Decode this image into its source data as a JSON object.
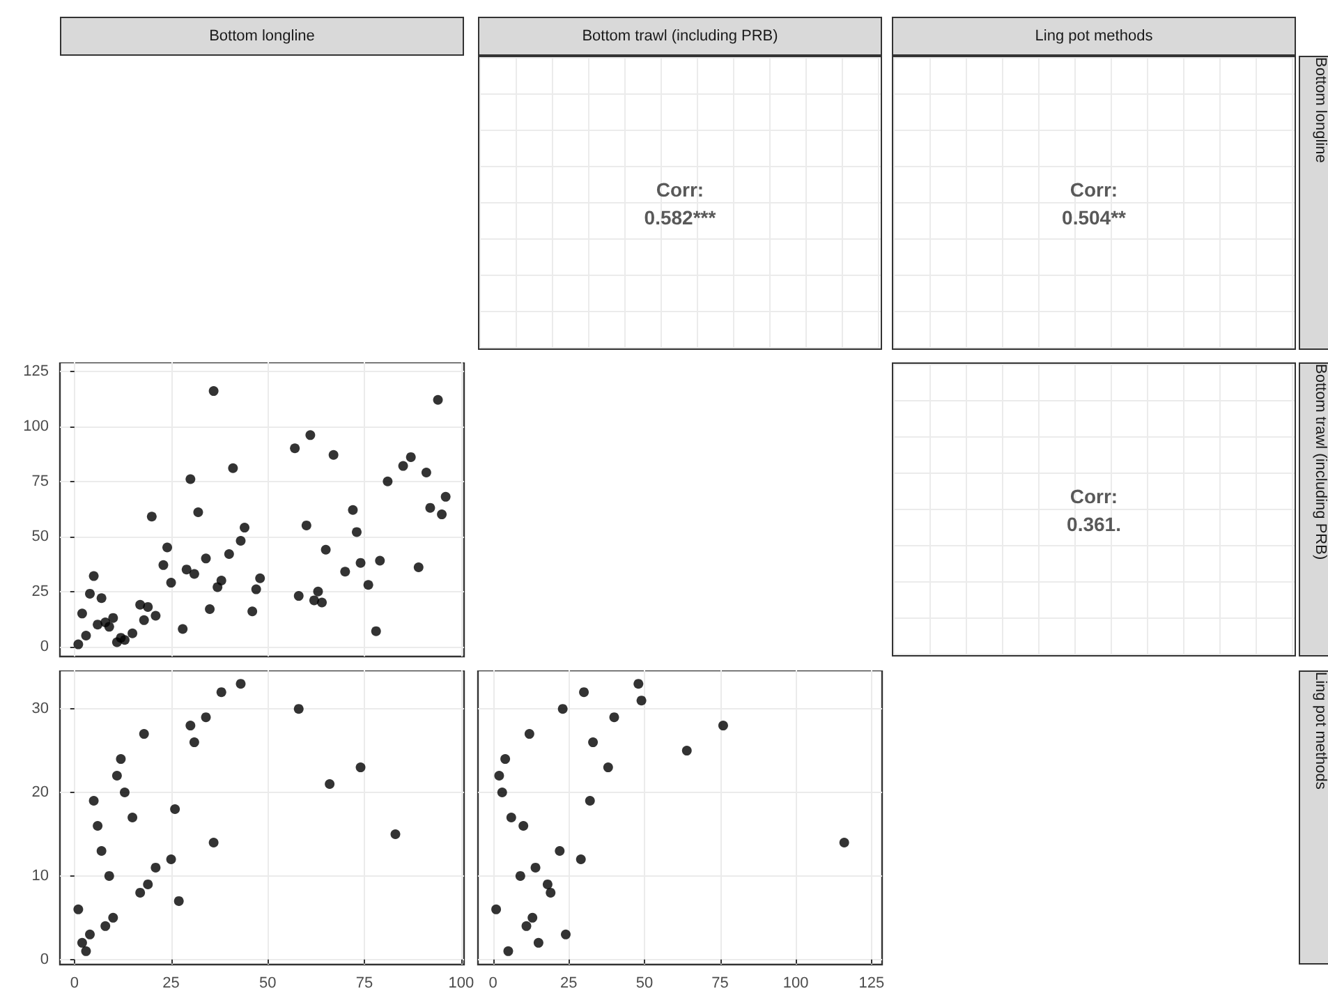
{
  "chart_data": [
    {
      "type": "other",
      "xlabel": "Bottom trawl (including PRB)",
      "ylabel": "Bottom longline",
      "annotations": [
        "Corr:",
        "0.582***"
      ]
    },
    {
      "type": "other",
      "xlabel": "Ling pot methods",
      "annotations": [
        "Corr:",
        "0.504**"
      ]
    },
    {
      "type": "scatter",
      "xlabel": "Bottom longline",
      "marker": "circle",
      "color": "#000000",
      "grid": true,
      "tick_labels": "y",
      "xlim": [
        -3.75,
        100.75
      ],
      "xticks": [
        0,
        25,
        50,
        75,
        100
      ],
      "ylim": [
        -4.5,
        129
      ],
      "yticks": [
        0,
        25,
        50,
        75,
        100,
        125
      ],
      "x": [
        1,
        2,
        3,
        4,
        5,
        6,
        7,
        8,
        9,
        10,
        11,
        12,
        13,
        15,
        17,
        18,
        19,
        20,
        21,
        23,
        24,
        25,
        28,
        29,
        30,
        31,
        32,
        34,
        35,
        36,
        37,
        38,
        40,
        41,
        43,
        44,
        46,
        47,
        48,
        57,
        58,
        60,
        61,
        62,
        63,
        64,
        65,
        67,
        70,
        72,
        73,
        74,
        76,
        78,
        79,
        81,
        85,
        87,
        89,
        91,
        92,
        94,
        95,
        96
      ],
      "values": [
        1,
        15,
        5,
        24,
        32,
        10,
        22,
        11,
        9,
        13,
        2,
        4,
        3,
        6,
        19,
        12,
        18,
        59,
        14,
        37,
        45,
        29,
        8,
        35,
        76,
        33,
        61,
        40,
        17,
        116,
        27,
        30,
        42,
        81,
        48,
        54,
        16,
        26,
        31,
        90,
        23,
        55,
        96,
        21,
        25,
        20,
        44,
        87,
        34,
        62,
        52,
        38,
        28,
        7,
        39,
        75,
        82,
        86,
        36,
        79,
        63,
        112,
        60,
        68
      ]
    },
    {
      "type": "other",
      "ylabel": "Bottom trawl (including PRB)",
      "annotations": [
        "Corr:",
        "0.361."
      ]
    },
    {
      "type": "scatter",
      "marker": "circle",
      "color": "#000000",
      "grid": true,
      "xlim": [
        -3.75,
        100.75
      ],
      "xticks": [
        0,
        25,
        50,
        75,
        100
      ],
      "ylim": [
        -0.6,
        34.6
      ],
      "yticks": [
        0,
        10,
        20,
        30
      ],
      "x": [
        1,
        2,
        3,
        4,
        5,
        6,
        7,
        8,
        9,
        10,
        11,
        12,
        13,
        15,
        17,
        18,
        19,
        21,
        25,
        26,
        27,
        30,
        31,
        34,
        36,
        38,
        43,
        58,
        66,
        74,
        83
      ],
      "values": [
        6,
        2,
        1,
        3,
        19,
        16,
        13,
        4,
        10,
        5,
        22,
        24,
        20,
        17,
        8,
        27,
        9,
        11,
        12,
        18,
        7,
        28,
        26,
        29,
        14,
        32,
        33,
        30,
        21,
        23,
        15
      ]
    },
    {
      "type": "scatter",
      "ylabel": "Ling pot methods",
      "marker": "circle",
      "color": "#000000",
      "grid": true,
      "tick_labels": "x",
      "xlim": [
        -5,
        128.5
      ],
      "xticks": [
        0,
        25,
        50,
        75,
        100,
        125
      ],
      "ylim": [
        -0.6,
        34.6
      ],
      "yticks": [
        0,
        10,
        20,
        30
      ],
      "x": [
        48,
        30,
        49,
        23,
        40,
        76,
        12,
        33,
        64,
        4,
        38,
        2,
        3,
        32,
        6,
        10,
        116,
        22,
        29,
        14,
        9,
        18,
        19,
        1,
        13,
        11,
        24,
        15,
        5
      ],
      "values": [
        33,
        32,
        31,
        30,
        29,
        28,
        27,
        26,
        25,
        24,
        23,
        22,
        20,
        19,
        17,
        16,
        14,
        13,
        12,
        11,
        10,
        9,
        8,
        6,
        5,
        4,
        3,
        2,
        1
      ]
    }
  ]
}
